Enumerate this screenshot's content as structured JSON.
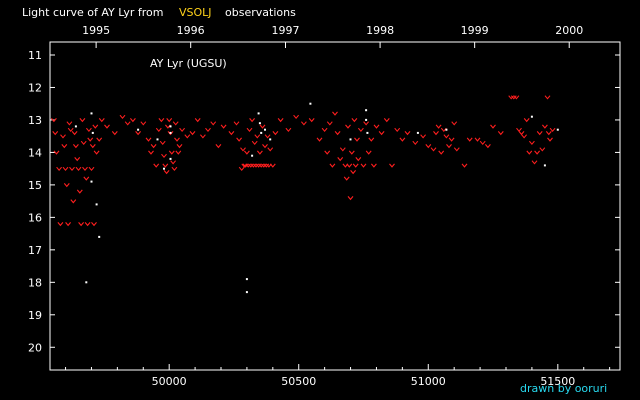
{
  "header": {
    "title_prefix": "Light curve of AY Lyr from",
    "title_accent": "VSOLJ",
    "title_suffix": "observations"
  },
  "credit": "drawn by ooruri",
  "colors": {
    "background": "#000000",
    "axes": "#ffffff",
    "observation_mark": "#ff1e1e",
    "fainter_than_mark": "#ffffff",
    "accent": "#ffd21a",
    "credit": "#28d8ee"
  },
  "chart_data": {
    "type": "scatter",
    "title": "Light curve of AY Lyr from VSOLJ observations",
    "annotation": "AY Lyr (UGSU)",
    "xlabel": "",
    "ylabel": "",
    "xlim": [
      49540,
      51740
    ],
    "ylim": [
      20.7,
      10.6
    ],
    "y_inverted": true,
    "grid": false,
    "x_ticks": [
      50000,
      50500,
      51000,
      51500
    ],
    "x_tick_labels": [
      "50000",
      "50500",
      "51000",
      "51500"
    ],
    "y_ticks": [
      11,
      12,
      13,
      14,
      15,
      16,
      17,
      18,
      19,
      20
    ],
    "y_tick_labels": [
      "11",
      "12",
      "13",
      "14",
      "15",
      "16",
      "17",
      "18",
      "19",
      "20"
    ],
    "top_axis": {
      "ticks": [
        49718,
        50083,
        50449,
        50814,
        51179,
        51544
      ],
      "labels": [
        "1995",
        "1996",
        "1997",
        "1998",
        "1999",
        "2000"
      ]
    },
    "series": [
      {
        "marker": "v",
        "color": "#ff1e1e",
        "points": [
          [
            49555,
            13.0
          ],
          [
            49560,
            13.4
          ],
          [
            49565,
            14.0
          ],
          [
            49575,
            14.5
          ],
          [
            49580,
            16.2
          ],
          [
            49590,
            13.5
          ],
          [
            49595,
            13.8
          ],
          [
            49600,
            14.5
          ],
          [
            49605,
            15.0
          ],
          [
            49610,
            16.2
          ],
          [
            49615,
            13.1
          ],
          [
            49620,
            13.3
          ],
          [
            49625,
            14.5
          ],
          [
            49630,
            15.5
          ],
          [
            49635,
            13.4
          ],
          [
            49640,
            13.8
          ],
          [
            49645,
            14.2
          ],
          [
            49650,
            14.5
          ],
          [
            49655,
            15.2
          ],
          [
            49660,
            16.2
          ],
          [
            49665,
            13.0
          ],
          [
            49670,
            13.7
          ],
          [
            49675,
            14.5
          ],
          [
            49680,
            14.8
          ],
          [
            49685,
            16.2
          ],
          [
            49690,
            13.3
          ],
          [
            49695,
            13.6
          ],
          [
            49700,
            14.5
          ],
          [
            49705,
            13.8
          ],
          [
            49710,
            16.2
          ],
          [
            49715,
            13.2
          ],
          [
            49720,
            14.0
          ],
          [
            49730,
            13.6
          ],
          [
            49740,
            13.0
          ],
          [
            49760,
            13.2
          ],
          [
            49790,
            13.4
          ],
          [
            49820,
            12.9
          ],
          [
            49840,
            13.1
          ],
          [
            49860,
            13.0
          ],
          [
            49880,
            13.4
          ],
          [
            49900,
            13.1
          ],
          [
            49920,
            13.6
          ],
          [
            49930,
            14.0
          ],
          [
            49940,
            13.8
          ],
          [
            49950,
            14.4
          ],
          [
            49960,
            13.3
          ],
          [
            49970,
            13.0
          ],
          [
            49975,
            13.7
          ],
          [
            49980,
            14.1
          ],
          [
            49985,
            14.4
          ],
          [
            49990,
            14.6
          ],
          [
            49995,
            13.2
          ],
          [
            50000,
            13.0
          ],
          [
            50005,
            13.4
          ],
          [
            50010,
            14.0
          ],
          [
            50015,
            14.3
          ],
          [
            50020,
            14.5
          ],
          [
            50025,
            13.1
          ],
          [
            50030,
            13.6
          ],
          [
            50035,
            14.0
          ],
          [
            50040,
            13.8
          ],
          [
            50050,
            13.3
          ],
          [
            50070,
            13.5
          ],
          [
            50090,
            13.4
          ],
          [
            50110,
            13.0
          ],
          [
            50130,
            13.5
          ],
          [
            50150,
            13.3
          ],
          [
            50170,
            13.1
          ],
          [
            50190,
            13.8
          ],
          [
            50210,
            13.2
          ],
          [
            50240,
            13.4
          ],
          [
            50260,
            13.1
          ],
          [
            50270,
            13.6
          ],
          [
            50280,
            14.5
          ],
          [
            50285,
            13.9
          ],
          [
            50290,
            14.4
          ],
          [
            50295,
            14.4
          ],
          [
            50300,
            14.0
          ],
          [
            50305,
            14.4
          ],
          [
            50310,
            13.3
          ],
          [
            50315,
            14.4
          ],
          [
            50320,
            13.0
          ],
          [
            50325,
            14.4
          ],
          [
            50330,
            13.7
          ],
          [
            50335,
            14.4
          ],
          [
            50340,
            13.5
          ],
          [
            50345,
            14.4
          ],
          [
            50350,
            14.0
          ],
          [
            50355,
            14.4
          ],
          [
            50360,
            13.2
          ],
          [
            50365,
            14.4
          ],
          [
            50370,
            13.8
          ],
          [
            50375,
            14.4
          ],
          [
            50380,
            13.5
          ],
          [
            50385,
            14.4
          ],
          [
            50390,
            13.9
          ],
          [
            50400,
            14.4
          ],
          [
            50410,
            13.4
          ],
          [
            50430,
            13.0
          ],
          [
            50460,
            13.3
          ],
          [
            50490,
            12.9
          ],
          [
            50520,
            13.1
          ],
          [
            50550,
            13.0
          ],
          [
            50580,
            13.6
          ],
          [
            50600,
            13.3
          ],
          [
            50610,
            14.0
          ],
          [
            50620,
            13.1
          ],
          [
            50630,
            14.4
          ],
          [
            50640,
            12.8
          ],
          [
            50650,
            13.4
          ],
          [
            50660,
            14.2
          ],
          [
            50670,
            13.9
          ],
          [
            50680,
            14.4
          ],
          [
            50685,
            14.8
          ],
          [
            50690,
            13.2
          ],
          [
            50695,
            14.4
          ],
          [
            50700,
            15.4
          ],
          [
            50705,
            14.0
          ],
          [
            50710,
            14.6
          ],
          [
            50715,
            13.0
          ],
          [
            50720,
            14.4
          ],
          [
            50725,
            13.6
          ],
          [
            50730,
            14.2
          ],
          [
            50740,
            13.3
          ],
          [
            50750,
            14.4
          ],
          [
            50760,
            13.1
          ],
          [
            50770,
            14.0
          ],
          [
            50780,
            13.6
          ],
          [
            50790,
            14.4
          ],
          [
            50800,
            13.2
          ],
          [
            50820,
            13.4
          ],
          [
            50840,
            13.0
          ],
          [
            50860,
            14.4
          ],
          [
            50880,
            13.3
          ],
          [
            50900,
            13.6
          ],
          [
            50920,
            13.4
          ],
          [
            50950,
            13.7
          ],
          [
            50980,
            13.5
          ],
          [
            51000,
            13.8
          ],
          [
            51020,
            13.9
          ],
          [
            51030,
            13.4
          ],
          [
            51040,
            13.2
          ],
          [
            51050,
            14.0
          ],
          [
            51060,
            13.3
          ],
          [
            51070,
            13.5
          ],
          [
            51080,
            13.8
          ],
          [
            51090,
            13.6
          ],
          [
            51100,
            13.1
          ],
          [
            51110,
            13.9
          ],
          [
            51140,
            14.4
          ],
          [
            51160,
            13.6
          ],
          [
            51190,
            13.6
          ],
          [
            51210,
            13.7
          ],
          [
            51230,
            13.8
          ],
          [
            51250,
            13.2
          ],
          [
            51280,
            13.4
          ],
          [
            51320,
            12.3
          ],
          [
            51330,
            12.3
          ],
          [
            51340,
            12.3
          ],
          [
            51350,
            13.3
          ],
          [
            51360,
            13.4
          ],
          [
            51370,
            13.5
          ],
          [
            51380,
            13.0
          ],
          [
            51390,
            14.0
          ],
          [
            51400,
            13.7
          ],
          [
            51410,
            14.3
          ],
          [
            51420,
            14.0
          ],
          [
            51430,
            13.4
          ],
          [
            51440,
            13.9
          ],
          [
            51450,
            13.2
          ],
          [
            51460,
            12.3
          ],
          [
            51465,
            13.4
          ],
          [
            51470,
            13.6
          ],
          [
            51480,
            13.3
          ]
        ]
      },
      {
        "marker": "dot",
        "color": "#ffffff",
        "points": [
          [
            49640,
            13.2
          ],
          [
            49680,
            18.0
          ],
          [
            49700,
            14.9
          ],
          [
            49700,
            12.8
          ],
          [
            49705,
            13.4
          ],
          [
            49720,
            15.6
          ],
          [
            49730,
            16.6
          ],
          [
            49880,
            13.3
          ],
          [
            49955,
            13.6
          ],
          [
            49980,
            14.5
          ],
          [
            50005,
            14.2
          ],
          [
            50005,
            13.2
          ],
          [
            50005,
            13.4
          ],
          [
            50300,
            18.3
          ],
          [
            50300,
            17.9
          ],
          [
            50320,
            14.1
          ],
          [
            50345,
            12.8
          ],
          [
            50350,
            13.1
          ],
          [
            50355,
            13.4
          ],
          [
            50370,
            13.3
          ],
          [
            50390,
            13.6
          ],
          [
            50545,
            12.5
          ],
          [
            50700,
            13.6
          ],
          [
            50760,
            12.7
          ],
          [
            50760,
            13.0
          ],
          [
            50765,
            13.4
          ],
          [
            50960,
            13.4
          ],
          [
            51070,
            13.3
          ],
          [
            51400,
            12.9
          ],
          [
            51450,
            14.4
          ],
          [
            51500,
            13.3
          ]
        ]
      }
    ]
  }
}
